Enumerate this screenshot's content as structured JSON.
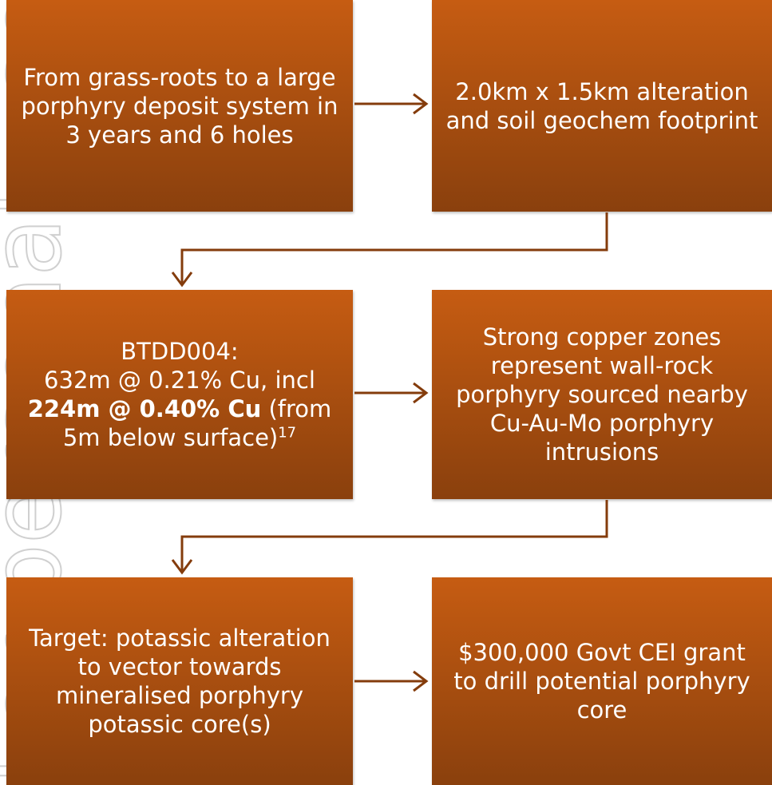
{
  "watermark": "For personal use only",
  "boxes": [
    {
      "text": "From grass-roots to a large porphyry deposit system in 3 years and 6 holes"
    },
    {
      "text": "2.0km x 1.5km alteration and soil geochem footprint"
    },
    {
      "parts": [
        "BTDD004:",
        "632m @ 0.21% Cu, incl",
        "224m @ 0.40% Cu",
        " (from",
        "5m below surface)",
        "17"
      ]
    },
    {
      "text": "Strong copper zones represent wall-rock porphyry sourced nearby Cu-Au-Mo porphyry intrusions"
    },
    {
      "text": "Target: potassic alteration to vector towards mineralised porphyry potassic core(s)"
    },
    {
      "text": "$300,000 Govt CEI grant to drill potential porphyry core"
    }
  ]
}
